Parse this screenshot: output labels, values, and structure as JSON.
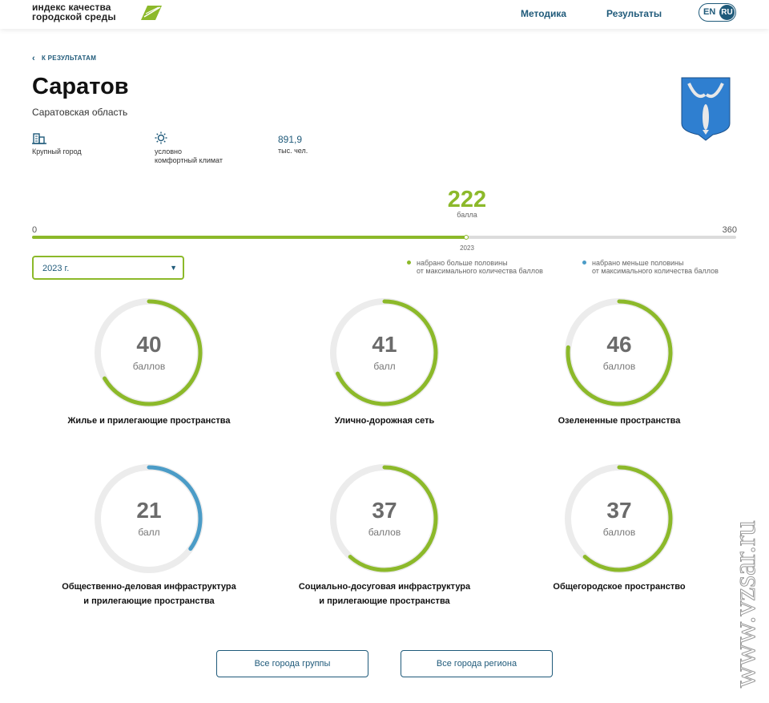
{
  "header": {
    "logo_text": "индекс качества\nгородской среды",
    "nav": [
      {
        "label": "Методика"
      },
      {
        "label": "Результаты"
      }
    ],
    "lang_en": "EN",
    "lang_ru": "RU"
  },
  "back_link": "К РЕЗУЛЬТАТАМ",
  "city": {
    "name": "Саратов",
    "region": "Саратовская область"
  },
  "facts": {
    "city_type": "Крупный город",
    "climate": "условно\nкомфортный климат",
    "population_value": "891,9",
    "population_unit": "тыс. чел."
  },
  "total": {
    "score": "222",
    "unit": "балла",
    "min": "0",
    "max": "360",
    "year": "2023",
    "value": 222,
    "max_value": 360
  },
  "year_select": {
    "value": "2023 г."
  },
  "legend": [
    {
      "text": "набрано больше половины\nот максимального количества баллов",
      "color": "#8cb92a"
    },
    {
      "text": "набрано меньше половины\nот максимального количества баллов",
      "color": "#4b9cc7"
    }
  ],
  "categories": [
    {
      "score": "40",
      "unit": "баллов",
      "label": "Жилье и прилегающие пространства",
      "value": 40,
      "max": 60,
      "color": "#8cb92a"
    },
    {
      "score": "41",
      "unit": "балл",
      "label": "Улично-дорожная сеть",
      "value": 41,
      "max": 60,
      "color": "#8cb92a"
    },
    {
      "score": "46",
      "unit": "баллов",
      "label": "Озелененные пространства",
      "value": 46,
      "max": 60,
      "color": "#8cb92a"
    },
    {
      "score": "21",
      "unit": "балл",
      "label": "Общественно-деловая инфраструктура\nи прилегающие пространства",
      "value": 21,
      "max": 60,
      "color": "#4b9cc7"
    },
    {
      "score": "37",
      "unit": "баллов",
      "label": "Социально-досуговая инфраструктура\nи прилегающие пространства",
      "value": 37,
      "max": 60,
      "color": "#8cb92a"
    },
    {
      "score": "37",
      "unit": "баллов",
      "label": "Общегородское пространство",
      "value": 37,
      "max": 60,
      "color": "#8cb92a"
    }
  ],
  "buttons": {
    "group": "Все города группы",
    "region": "Все города региона"
  },
  "watermark": "www.vzsar.ru"
}
